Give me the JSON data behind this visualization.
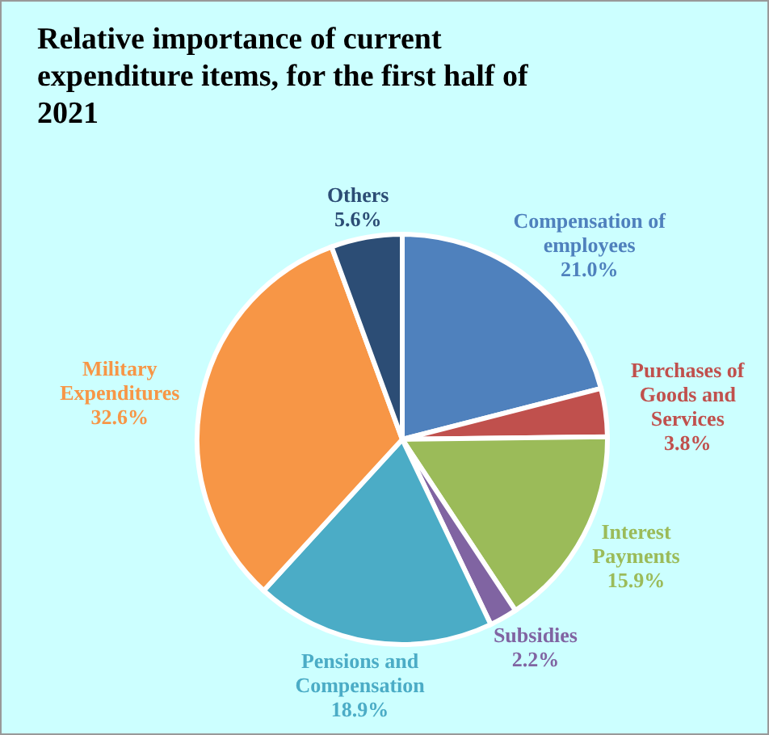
{
  "chart_data": {
    "type": "pie",
    "title": "Relative importance of current expenditure items, for the first half of 2021",
    "categories": [
      "Compensation of employees",
      "Purchases of Goods and Services",
      "Interest Payments",
      "Subsidies",
      "Pensions and Compensation",
      "Military Expenditures",
      "Others"
    ],
    "values": [
      21.0,
      3.8,
      15.9,
      2.2,
      18.9,
      32.6,
      5.6
    ],
    "value_labels": [
      "21.0%",
      "3.8%",
      "15.9%",
      "2.2%",
      "18.9%",
      "32.6%",
      "5.6%"
    ],
    "colors": [
      "#4f81bd",
      "#c0504d",
      "#9bbb59",
      "#8064a2",
      "#4bacc6",
      "#f79646",
      "#2c4d75"
    ]
  }
}
